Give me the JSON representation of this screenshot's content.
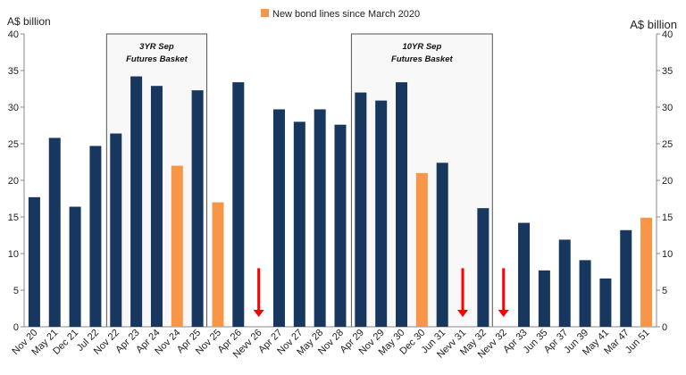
{
  "chart_data": {
    "type": "bar",
    "categories": [
      "Nov 20",
      "May 21",
      "Dec 21",
      "Jul 22",
      "Nov 22",
      "Apr 23",
      "Apr 24",
      "Nov 24",
      "Apr 25",
      "Nov 25",
      "Apr 26",
      "Nevv 26",
      "Apr 27",
      "Nov 27",
      "May 28",
      "Nov 28",
      "Apr 29",
      "Nov 29",
      "May 30",
      "Dec 30",
      "Jun 31",
      "Nevv 31",
      "May 32",
      "Nevv 32",
      "Apr 33",
      "Jun 35",
      "Apr 37",
      "Jun 39",
      "May 41",
      "Mar 47",
      "Jun 51"
    ],
    "values": [
      17.7,
      25.8,
      16.4,
      24.7,
      26.4,
      34.2,
      32.9,
      22.0,
      32.3,
      17.0,
      33.4,
      null,
      29.7,
      28.0,
      29.7,
      27.6,
      32.0,
      30.9,
      33.4,
      21.0,
      22.4,
      null,
      16.2,
      null,
      14.2,
      7.7,
      11.9,
      9.1,
      6.6,
      13.2,
      14.9
    ],
    "is_new": [
      false,
      false,
      false,
      false,
      false,
      false,
      false,
      true,
      false,
      true,
      false,
      false,
      false,
      false,
      false,
      false,
      false,
      false,
      false,
      true,
      false,
      false,
      false,
      false,
      false,
      false,
      false,
      false,
      false,
      false,
      true
    ],
    "arrow_categories": [
      "Nevv 26",
      "Nevv 31",
      "Nevv 32"
    ],
    "arrow_top_value": 8,
    "ylim": [
      0,
      40
    ],
    "yticks": [
      "0",
      "5",
      "10",
      "15",
      "20",
      "25",
      "30",
      "35",
      "40"
    ],
    "ylabel_left": "A$ billion",
    "ylabel_right": "A$ billion",
    "legend": {
      "label": "New bond lines since March 2020",
      "position": "top-center"
    },
    "colors": {
      "existing": "#17375e",
      "new": "#f79646",
      "arrow": "#ff0000",
      "box_fill": "#f8f8f8",
      "box_stroke": "#555555"
    },
    "annotations": [
      {
        "line1": "3YR Sep",
        "line2": "Futures Basket",
        "from": "Nov 22",
        "to": "Apr 25"
      },
      {
        "line1": "10YR Sep",
        "line2": "Futures Basket",
        "from": "Apr 29",
        "to": "May 32"
      }
    ]
  }
}
